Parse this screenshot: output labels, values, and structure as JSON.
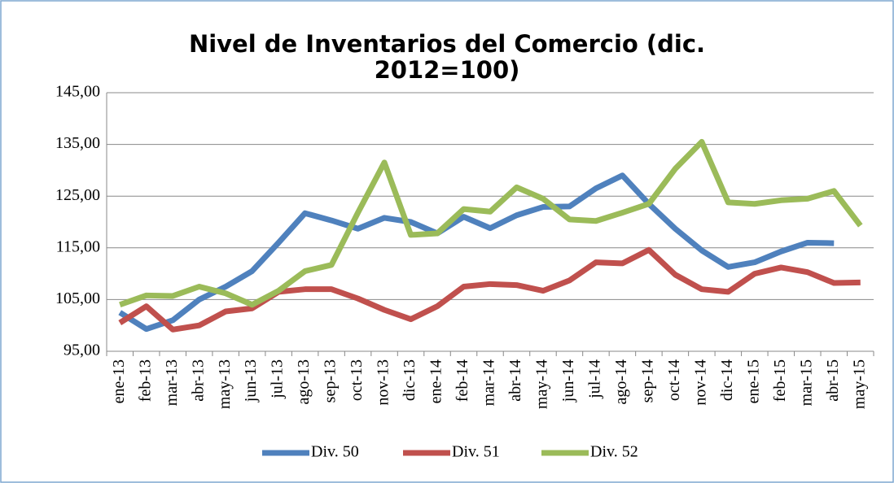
{
  "chart_data": {
    "type": "line",
    "title": "Nivel de Inventarios del Comercio (dic. 2012=100)",
    "categories": [
      "ene-13",
      "feb-13",
      "mar-13",
      "abr-13",
      "may-13",
      "jun-13",
      "jul-13",
      "ago-13",
      "sep-13",
      "oct-13",
      "nov-13",
      "dic-13",
      "ene-14",
      "feb-14",
      "mar-14",
      "abr-14",
      "may-14",
      "jun-14",
      "jul-14",
      "ago-14",
      "sep-14",
      "oct-14",
      "nov-14",
      "dic-14",
      "ene-15",
      "feb-15",
      "mar-15",
      "abr-15",
      "may-15"
    ],
    "series": [
      {
        "name": "Div. 50",
        "color": "#4f81bd",
        "values": [
          102.5,
          99.3,
          101,
          105,
          107.5,
          110.5,
          116,
          121.7,
          120.3,
          118.7,
          120.8,
          120,
          117.8,
          121,
          118.8,
          121.3,
          122.9,
          123,
          126.5,
          129,
          123.5,
          118.7,
          114.5,
          111.3,
          112.2,
          114.3,
          116,
          115.9,
          null
        ]
      },
      {
        "name": "Div. 51",
        "color": "#c0504d",
        "values": [
          100.5,
          103.7,
          99.2,
          100,
          102.7,
          103.3,
          106.5,
          107,
          107,
          105.2,
          103,
          101.2,
          103.7,
          107.5,
          108,
          107.8,
          106.7,
          108.7,
          112.2,
          112,
          114.6,
          109.8,
          107,
          106.5,
          110,
          111.2,
          110.3,
          108.2,
          108.3
        ]
      },
      {
        "name": "Div. 52",
        "color": "#9bbb59",
        "values": [
          104,
          105.8,
          105.7,
          107.5,
          106.2,
          104,
          106.7,
          110.5,
          111.7,
          121.8,
          131.5,
          117.5,
          117.8,
          122.5,
          122,
          126.7,
          124.5,
          120.5,
          120.2,
          121.8,
          123.5,
          130.3,
          135.5,
          123.8,
          123.5,
          124.2,
          124.5,
          126,
          119.3
        ]
      }
    ],
    "ylim": [
      95,
      145
    ],
    "yticks": [
      {
        "value": 95,
        "label": "95,00"
      },
      {
        "value": 105,
        "label": "105,00"
      },
      {
        "value": 115,
        "label": "115,00"
      },
      {
        "value": 125,
        "label": "125,00"
      },
      {
        "value": 135,
        "label": "135,00"
      },
      {
        "value": 145,
        "label": "145,00"
      }
    ],
    "grid": true,
    "legend": "bottom"
  }
}
